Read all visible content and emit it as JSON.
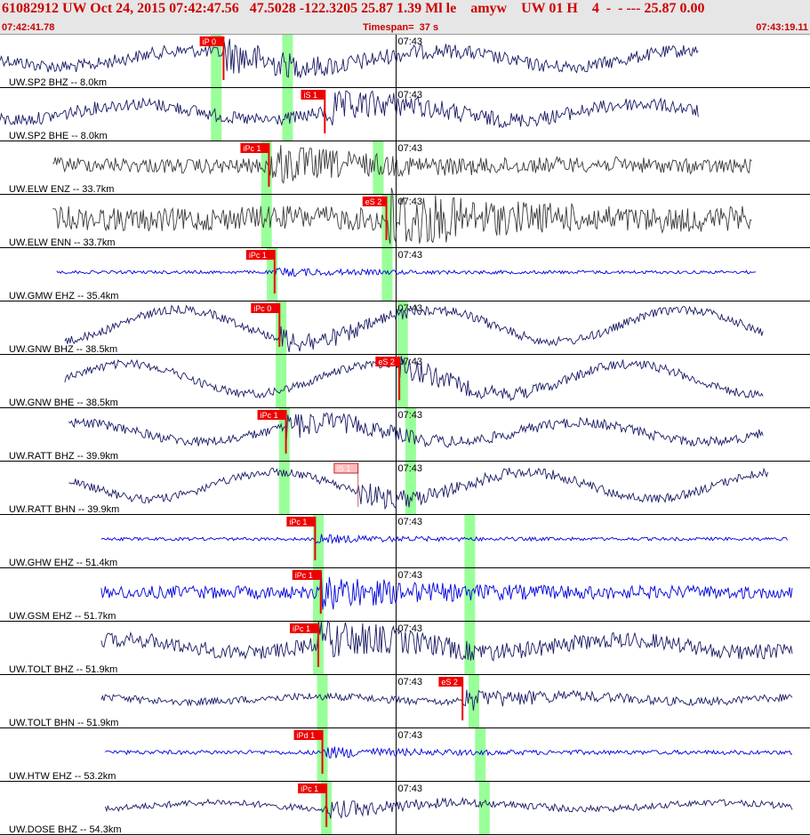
{
  "header": {
    "title": "61082912 UW Oct 24, 2015 07:42:47.56   47.5028 -122.3205 25.87 1.39 Ml le    amyw    UW 01 H    4  -  - --- 25.87 0.00",
    "start_time": "07:42:41.78",
    "timespan": "Timespan=  37 s",
    "end_time": "07:43:19.11"
  },
  "colors": {
    "header_bg": "#e6e6e6",
    "title_text": "#cc0000",
    "trace_navy": "#1a1a66",
    "trace_gray": "#3a3a3a",
    "trace_blue": "#0000dd",
    "pick_flag": "#ee0000",
    "pick_flag_light": "#ffbbbb",
    "window_highlight": "#99ff99"
  },
  "chart_data": {
    "type": "line",
    "minute_tick_label": "07:43",
    "traces": [
      {
        "label": "UW.SP2 BHZ -- 8.0km",
        "color": "trace_navy",
        "lf_amp": 0.15,
        "hf_amp": 0.12,
        "xs": 0.0,
        "xe": 0.862,
        "picks": [
          {
            "label": "iP 0",
            "x": 0.276,
            "style": "solid"
          }
        ],
        "windows": [
          0.267,
          0.355
        ],
        "minute_line": 0.489
      },
      {
        "label": "UW.SP2 BHE -- 8.0km",
        "color": "trace_navy",
        "lf_amp": 0.15,
        "hf_amp": 0.12,
        "xs": 0.0,
        "xe": 0.862,
        "picks": [
          {
            "label": "iS 1",
            "x": 0.401,
            "style": "solid"
          }
        ],
        "windows": [
          0.267,
          0.355
        ],
        "minute_line": 0.489
      },
      {
        "label": "UW.ELW ENZ -- 33.7km",
        "color": "trace_gray",
        "lf_amp": 0.02,
        "hf_amp": 0.14,
        "xs": 0.065,
        "xe": 0.928,
        "picks": [
          {
            "label": "iPc 1",
            "x": 0.332,
            "style": "solid"
          }
        ],
        "windows": [
          0.329,
          0.467
        ],
        "minute_line": 0.489
      },
      {
        "label": "UW.ELW ENN -- 33.7km",
        "color": "trace_gray",
        "lf_amp": 0.03,
        "hf_amp": 0.22,
        "xs": 0.065,
        "xe": 0.928,
        "picks": [
          {
            "label": "eS 2",
            "x": 0.477,
            "style": "solid"
          }
        ],
        "windows": [
          0.329,
          0.478
        ],
        "minute_line": 0.489
      },
      {
        "label": "UW.GMW EHZ -- 35.4km",
        "color": "trace_blue",
        "lf_amp": 0.0,
        "hf_amp": 0.03,
        "xs": 0.07,
        "xe": 0.933,
        "picks": [
          {
            "label": "iPc 1",
            "x": 0.339,
            "style": "solid"
          }
        ],
        "windows": [
          0.336,
          0.478
        ],
        "minute_line": 0.489
      },
      {
        "label": "UW.GNW BHZ -- 38.5km",
        "color": "trace_navy",
        "lf_amp": 0.3,
        "hf_amp": 0.08,
        "xs": 0.08,
        "xe": 0.942,
        "picks": [
          {
            "label": "iPc 0",
            "x": 0.345,
            "style": "solid"
          }
        ],
        "windows": [
          0.347,
          0.497
        ],
        "minute_line": 0.489
      },
      {
        "label": "UW.GNW BHE -- 38.5km",
        "color": "trace_navy",
        "lf_amp": 0.28,
        "hf_amp": 0.08,
        "xs": 0.08,
        "xe": 0.942,
        "picks": [
          {
            "label": "eS 2",
            "x": 0.493,
            "style": "solid"
          }
        ],
        "windows": [
          0.347,
          0.497
        ],
        "minute_line": 0.489
      },
      {
        "label": "UW.RATT BHZ -- 39.9km",
        "color": "trace_navy",
        "lf_amp": 0.18,
        "hf_amp": 0.09,
        "xs": 0.085,
        "xe": 0.942,
        "picks": [
          {
            "label": "iPc 1",
            "x": 0.353,
            "style": "solid"
          }
        ],
        "windows": [
          0.351,
          0.507
        ],
        "minute_line": 0.489
      },
      {
        "label": "UW.RATT BHN -- 39.9km",
        "color": "trace_navy",
        "lf_amp": 0.25,
        "hf_amp": 0.08,
        "xs": 0.085,
        "xe": 0.948,
        "picks": [
          {
            "label": "iS 1",
            "x": 0.442,
            "style": "light"
          }
        ],
        "windows": [
          0.351,
          0.507
        ],
        "minute_line": 0.489
      },
      {
        "label": "UW.GHW EHZ -- 51.4km",
        "color": "trace_blue",
        "lf_amp": 0.0,
        "hf_amp": 0.03,
        "xs": 0.125,
        "xe": 0.972,
        "picks": [
          {
            "label": "iPc 1",
            "x": 0.389,
            "style": "solid"
          }
        ],
        "windows": [
          0.393,
          0.58
        ],
        "minute_line": 0.489
      },
      {
        "label": "UW.GSM EHZ -- 51.7km",
        "color": "trace_blue",
        "lf_amp": 0.0,
        "hf_amp": 0.12,
        "xs": 0.125,
        "xe": 0.978,
        "picks": [
          {
            "label": "iPc 1",
            "x": 0.396,
            "style": "solid"
          }
        ],
        "windows": [
          0.393,
          0.58
        ],
        "minute_line": 0.489
      },
      {
        "label": "UW.TOLT BHZ -- 51.9km",
        "color": "trace_navy",
        "lf_amp": 0.12,
        "hf_amp": 0.14,
        "xs": 0.125,
        "xe": 0.978,
        "picks": [
          {
            "label": "iPc 1",
            "x": 0.393,
            "style": "solid"
          }
        ],
        "windows": [
          0.393,
          0.58
        ],
        "minute_line": 0.489
      },
      {
        "label": "UW.TOLT BHN -- 51.9km",
        "color": "trace_navy",
        "lf_amp": 0.05,
        "hf_amp": 0.07,
        "xs": 0.125,
        "xe": 0.978,
        "picks": [
          {
            "label": "eS 2",
            "x": 0.571,
            "style": "solid"
          }
        ],
        "windows": [
          0.398,
          0.585
        ],
        "minute_line": 0.489
      },
      {
        "label": "UW.HTW EHZ -- 53.2km",
        "color": "trace_blue",
        "lf_amp": 0.0,
        "hf_amp": 0.04,
        "xs": 0.13,
        "xe": 0.978,
        "picks": [
          {
            "label": "iPd 1",
            "x": 0.398,
            "style": "solid"
          }
        ],
        "windows": [
          0.398,
          0.593
        ],
        "minute_line": 0.489
      },
      {
        "label": "UW.DOSE BHZ -- 54.3km",
        "color": "trace_navy",
        "lf_amp": 0.06,
        "hf_amp": 0.06,
        "xs": 0.13,
        "xe": 0.978,
        "picks": [
          {
            "label": "iPc 1",
            "x": 0.403,
            "style": "solid"
          }
        ],
        "windows": [
          0.403,
          0.598
        ],
        "minute_line": 0.489
      }
    ]
  }
}
